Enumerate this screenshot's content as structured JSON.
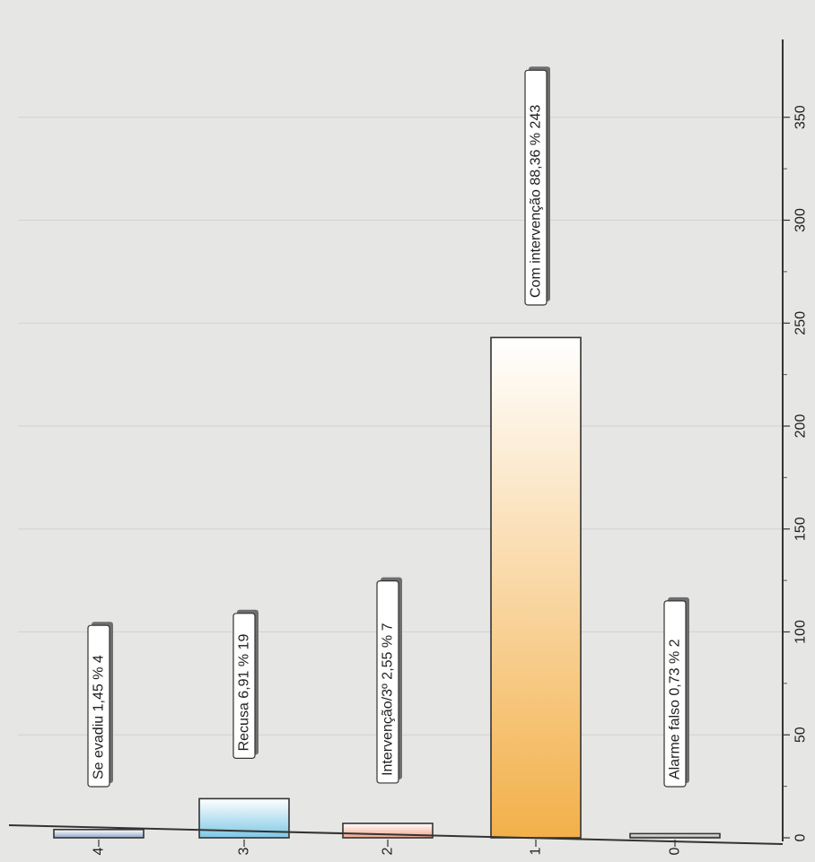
{
  "chart_data": {
    "type": "bar",
    "orientation": "vertical",
    "categories": [
      "4",
      "3",
      "2",
      "1",
      "0"
    ],
    "values": [
      4,
      19,
      7,
      243,
      2
    ],
    "data_labels": [
      "Se evadiu 1,45 % 4",
      "Recusa 6,91 % 19",
      "Intervenção/3º 2,55 % 7",
      "Com intervenção 88,36 % 243",
      "Alarme falso 0,73 % 2"
    ],
    "bar_colors": [
      "#8fa6c9",
      "#7ec8e6",
      "#f2a58a",
      "#f3b04a",
      "#9a9a9a"
    ],
    "yticks": [
      "0",
      "50",
      "100",
      "150",
      "200",
      "250",
      "300",
      "350"
    ],
    "ylim": [
      0,
      380
    ],
    "grid": true,
    "title": "",
    "xlabel": "",
    "ylabel": ""
  }
}
